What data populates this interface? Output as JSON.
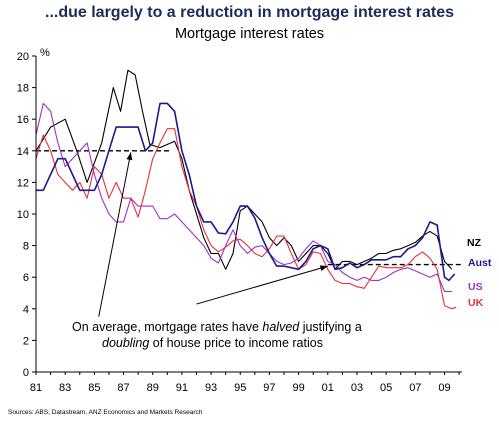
{
  "header": {
    "headline": "...due largely to a reduction in mortgage interest rates",
    "source": "Sources:  ABS, Datastream, ANZ Economics and Markets Research"
  },
  "colors": {
    "NZ": "#000000",
    "Aust": "#1a1a8c",
    "US": "#9933cc",
    "UK": "#e8303a",
    "axis": "#000000"
  },
  "chart_data": {
    "type": "line",
    "title": "Mortgage interest rates",
    "ylabel": "%",
    "xlabel": "",
    "xlim": [
      1981,
      2010.2
    ],
    "ylim": [
      0,
      20
    ],
    "yticks": [
      0,
      2,
      4,
      6,
      8,
      10,
      12,
      14,
      16,
      18,
      20
    ],
    "xticks": [
      1981,
      1983,
      1985,
      1987,
      1989,
      1991,
      1993,
      1995,
      1997,
      1999,
      2001,
      2003,
      2005,
      2007,
      2009
    ],
    "xticklabels": [
      "81",
      "83",
      "85",
      "87",
      "89",
      "91",
      "93",
      "95",
      "97",
      "99",
      "01",
      "03",
      "05",
      "07",
      "09"
    ],
    "grid": false,
    "legend": "end-of-line labels",
    "series": [
      {
        "name": "NZ",
        "points": [
          [
            1981,
            14
          ],
          [
            1982,
            15.5
          ],
          [
            1983,
            16
          ],
          [
            1983.8,
            14
          ],
          [
            1984.5,
            12
          ],
          [
            1985.5,
            14.5
          ],
          [
            1986.3,
            18
          ],
          [
            1986.8,
            16.5
          ],
          [
            1987.3,
            19.1
          ],
          [
            1987.8,
            18.8
          ],
          [
            1988.3,
            16.5
          ],
          [
            1988.8,
            14.4
          ],
          [
            1989.5,
            14.2
          ],
          [
            1990.5,
            14.6
          ],
          [
            1991,
            13.5
          ],
          [
            1991.5,
            11.5
          ],
          [
            1992,
            10
          ],
          [
            1992.5,
            8.5
          ],
          [
            1993,
            7.5
          ],
          [
            1993.5,
            7.5
          ],
          [
            1994,
            6.5
          ],
          [
            1994.5,
            7.5
          ],
          [
            1995,
            10.2
          ],
          [
            1995.5,
            10.5
          ],
          [
            1996,
            10
          ],
          [
            1996.5,
            9.5
          ],
          [
            1997,
            8.5
          ],
          [
            1997.5,
            8
          ],
          [
            1998,
            8.5
          ],
          [
            1998.5,
            8
          ],
          [
            1999,
            7
          ],
          [
            1999.5,
            7.5
          ],
          [
            2000,
            8
          ],
          [
            2000.5,
            8
          ],
          [
            2001,
            7.5
          ],
          [
            2001.5,
            6.5
          ],
          [
            2002,
            7
          ],
          [
            2002.5,
            7
          ],
          [
            2003,
            6.8
          ],
          [
            2003.5,
            7
          ],
          [
            2004,
            7.2
          ],
          [
            2004.5,
            7.5
          ],
          [
            2005,
            7.5
          ],
          [
            2005.5,
            7.7
          ],
          [
            2006,
            7.8
          ],
          [
            2006.5,
            8
          ],
          [
            2007,
            8.2
          ],
          [
            2007.5,
            8.6
          ],
          [
            2008,
            8.9
          ],
          [
            2008.5,
            8.6
          ],
          [
            2009,
            7
          ],
          [
            2009.5,
            6.5
          ]
        ]
      },
      {
        "name": "Aust",
        "points": [
          [
            1981,
            11.5
          ],
          [
            1981.5,
            11.5
          ],
          [
            1982,
            12.5
          ],
          [
            1982.5,
            13.5
          ],
          [
            1983,
            13.5
          ],
          [
            1983.5,
            12.5
          ],
          [
            1984,
            11.5
          ],
          [
            1985,
            11.5
          ],
          [
            1985.5,
            12.5
          ],
          [
            1986,
            14
          ],
          [
            1986.5,
            15.5
          ],
          [
            1987.5,
            15.5
          ],
          [
            1988,
            15.5
          ],
          [
            1988.5,
            14
          ],
          [
            1989,
            14.5
          ],
          [
            1989.5,
            17
          ],
          [
            1990,
            17
          ],
          [
            1990.5,
            16.5
          ],
          [
            1991,
            14
          ],
          [
            1991.5,
            12.5
          ],
          [
            1992,
            10.5
          ],
          [
            1992.5,
            9.5
          ],
          [
            1993,
            9.5
          ],
          [
            1993.5,
            8.8
          ],
          [
            1994,
            8.75
          ],
          [
            1994.5,
            9.5
          ],
          [
            1995,
            10.5
          ],
          [
            1995.5,
            10.5
          ],
          [
            1996,
            9.75
          ],
          [
            1996.5,
            8.5
          ],
          [
            1997,
            7.5
          ],
          [
            1997.5,
            6.7
          ],
          [
            1998,
            6.7
          ],
          [
            1999,
            6.5
          ],
          [
            1999.5,
            7
          ],
          [
            2000,
            7.8
          ],
          [
            2000.5,
            8
          ],
          [
            2001,
            7.8
          ],
          [
            2001.5,
            6.5
          ],
          [
            2002,
            6.6
          ],
          [
            2002.5,
            6.9
          ],
          [
            2003,
            6.6
          ],
          [
            2003.5,
            6.8
          ],
          [
            2004,
            7.1
          ],
          [
            2005,
            7.1
          ],
          [
            2005.5,
            7.3
          ],
          [
            2006,
            7.3
          ],
          [
            2006.5,
            7.8
          ],
          [
            2007,
            8
          ],
          [
            2007.5,
            8.5
          ],
          [
            2008,
            9.5
          ],
          [
            2008.5,
            9.3
          ],
          [
            2009,
            6
          ],
          [
            2009.3,
            5.8
          ],
          [
            2009.7,
            6.2
          ]
        ]
      },
      {
        "name": "US",
        "points": [
          [
            1981,
            15
          ],
          [
            1981.5,
            17
          ],
          [
            1982,
            16.5
          ],
          [
            1982.5,
            14.5
          ],
          [
            1983,
            13
          ],
          [
            1983.5,
            13.5
          ],
          [
            1984,
            14
          ],
          [
            1984.5,
            14.5
          ],
          [
            1985,
            12.5
          ],
          [
            1985.5,
            11
          ],
          [
            1986,
            10
          ],
          [
            1986.5,
            9.5
          ],
          [
            1987,
            9.5
          ],
          [
            1987.5,
            11
          ],
          [
            1988,
            10.5
          ],
          [
            1988.5,
            10.5
          ],
          [
            1989,
            10.5
          ],
          [
            1989.5,
            9.7
          ],
          [
            1990,
            9.7
          ],
          [
            1990.5,
            10
          ],
          [
            1991,
            9.5
          ],
          [
            1991.5,
            9
          ],
          [
            1992,
            8.5
          ],
          [
            1992.5,
            8
          ],
          [
            1993,
            7.2
          ],
          [
            1993.5,
            6.9
          ],
          [
            1994,
            8
          ],
          [
            1994.5,
            9
          ],
          [
            1995,
            8
          ],
          [
            1995.5,
            7.5
          ],
          [
            1996,
            7.9
          ],
          [
            1996.5,
            8
          ],
          [
            1997,
            7.5
          ],
          [
            1997.5,
            7
          ],
          [
            1998,
            6.8
          ],
          [
            1998.5,
            6.9
          ],
          [
            1999,
            7.2
          ],
          [
            1999.5,
            7.8
          ],
          [
            2000,
            8.3
          ],
          [
            2000.5,
            8
          ],
          [
            2001,
            7
          ],
          [
            2001.5,
            6.8
          ],
          [
            2002,
            6.3
          ],
          [
            2002.5,
            6
          ],
          [
            2003,
            5.8
          ],
          [
            2003.5,
            6
          ],
          [
            2004,
            5.8
          ],
          [
            2004.5,
            5.8
          ],
          [
            2005,
            6
          ],
          [
            2005.5,
            6.3
          ],
          [
            2006,
            6.5
          ],
          [
            2006.5,
            6.6
          ],
          [
            2007,
            6.4
          ],
          [
            2007.5,
            6.2
          ],
          [
            2008,
            6
          ],
          [
            2008.5,
            6.2
          ],
          [
            2009,
            5.1
          ],
          [
            2009.5,
            5.1
          ]
        ]
      },
      {
        "name": "UK",
        "points": [
          [
            1981,
            13.5
          ],
          [
            1981.5,
            15
          ],
          [
            1982,
            14
          ],
          [
            1982.5,
            12.5
          ],
          [
            1983,
            12
          ],
          [
            1983.5,
            11.5
          ],
          [
            1984,
            12
          ],
          [
            1984.5,
            11
          ],
          [
            1985,
            13
          ],
          [
            1985.5,
            12.5
          ],
          [
            1986,
            11
          ],
          [
            1986.5,
            12
          ],
          [
            1987,
            11
          ],
          [
            1987.5,
            11
          ],
          [
            1988,
            9.8
          ],
          [
            1988.5,
            11.5
          ],
          [
            1989,
            13.5
          ],
          [
            1989.5,
            14.5
          ],
          [
            1990,
            15.4
          ],
          [
            1990.5,
            15.4
          ],
          [
            1991,
            13
          ],
          [
            1991.5,
            11.5
          ],
          [
            1992,
            10.5
          ],
          [
            1992.5,
            9
          ],
          [
            1993,
            8
          ],
          [
            1993.5,
            7.6
          ],
          [
            1994,
            7.9
          ],
          [
            1994.5,
            8.3
          ],
          [
            1995,
            8.4
          ],
          [
            1995.5,
            8
          ],
          [
            1996,
            7.5
          ],
          [
            1996.5,
            7.3
          ],
          [
            1997,
            7.8
          ],
          [
            1997.5,
            8.6
          ],
          [
            1998,
            8.6
          ],
          [
            1998.5,
            7.5
          ],
          [
            1999,
            6.5
          ],
          [
            1999.5,
            6.8
          ],
          [
            2000,
            7.6
          ],
          [
            2000.5,
            7.5
          ],
          [
            2001,
            6.5
          ],
          [
            2001.5,
            5.8
          ],
          [
            2002,
            5.6
          ],
          [
            2002.5,
            5.6
          ],
          [
            2003,
            5.4
          ],
          [
            2003.5,
            5.3
          ],
          [
            2004,
            6
          ],
          [
            2004.5,
            6.7
          ],
          [
            2005,
            6.6
          ],
          [
            2005.5,
            6.6
          ],
          [
            2006,
            6.6
          ],
          [
            2006.5,
            6.8
          ],
          [
            2007,
            7.3
          ],
          [
            2007.5,
            7.6
          ],
          [
            2008,
            7.2
          ],
          [
            2008.5,
            6.5
          ],
          [
            2009,
            4.2
          ],
          [
            2009.5,
            4
          ],
          [
            2009.8,
            4.1
          ]
        ]
      }
    ],
    "reference_lines": [
      {
        "name": "average-1981-1990",
        "from": [
          1981,
          14
        ],
        "to": [
          1990.3,
          14
        ]
      },
      {
        "name": "average-2001-2010",
        "from": [
          2001,
          6.8
        ],
        "to": [
          2010.2,
          6.8
        ]
      }
    ],
    "annotation": {
      "line1_prefix": "On average, mortgage rates have ",
      "line1_emph": "halved",
      "line1_suffix": " justifying a",
      "line2_emph": "doubling",
      "line2_suffix": " of house price to income ratios",
      "arrows": [
        {
          "tail": [
            1985.3,
            3.5
          ],
          "head": [
            1987.5,
            13.9
          ]
        },
        {
          "tail": [
            1992,
            4.3
          ],
          "head": [
            2001,
            6.7
          ]
        }
      ]
    }
  }
}
